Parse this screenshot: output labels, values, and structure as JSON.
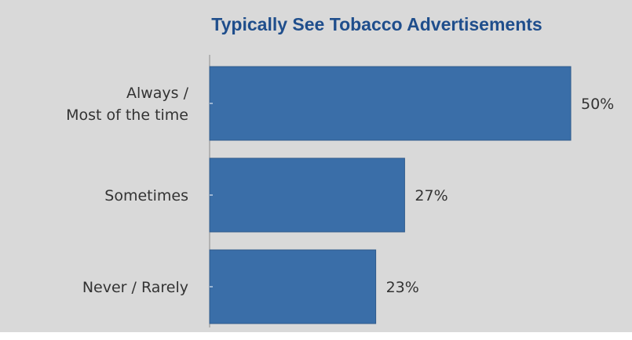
{
  "chart_data": {
    "type": "bar",
    "orientation": "horizontal",
    "title": "Typically See Tobacco Advertisements",
    "categories": [
      [
        "Always /",
        "Most of the time"
      ],
      [
        "Sometimes"
      ],
      [
        "Never / Rarely"
      ]
    ],
    "values": [
      50,
      27,
      23
    ],
    "value_labels": [
      "50%",
      "27%",
      "23%"
    ],
    "xlim": [
      0,
      50
    ],
    "grid": false,
    "legend": "none",
    "colors": {
      "bar": "#3a6ea8",
      "bar_border": "#2f5a8c",
      "title": "#1f4e8c",
      "background": "#d9d9d9"
    }
  }
}
